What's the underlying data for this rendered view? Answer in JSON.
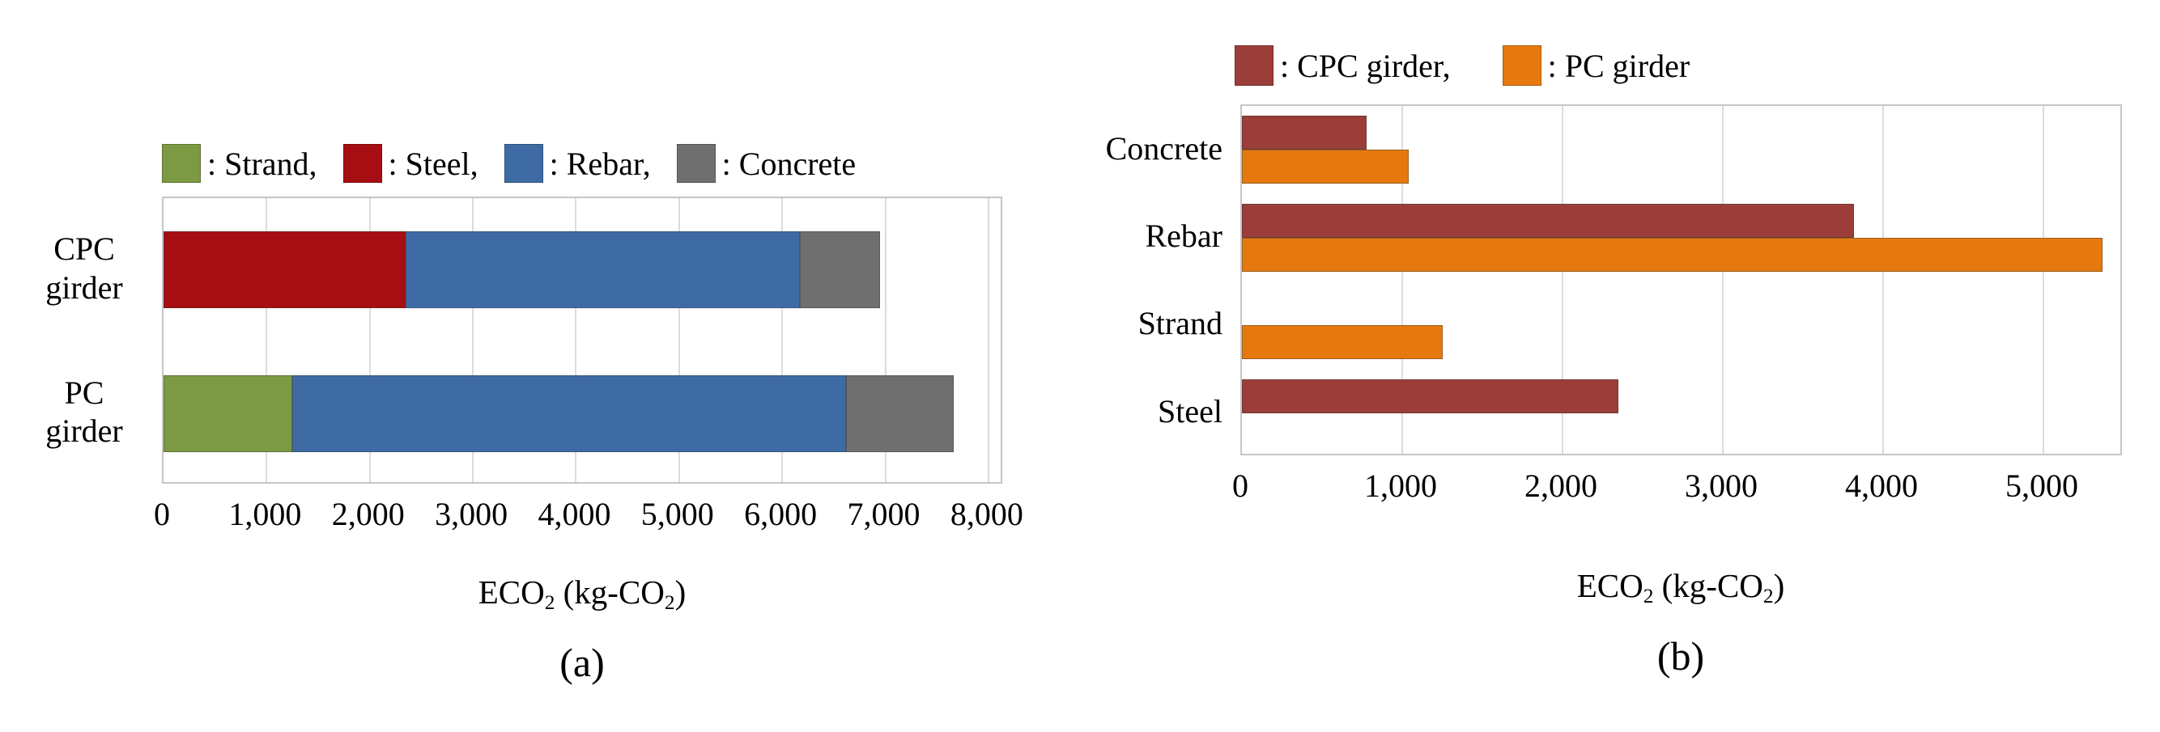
{
  "figure": {
    "description": "Two horizontal bar charts comparing embodied CO2 of CPC girder and PC girder by material"
  },
  "chart_data": [
    {
      "id": "a",
      "type": "bar",
      "orientation": "horizontal",
      "stacked": true,
      "title": "",
      "caption": "(a)",
      "xlabel": "ECO2 (kg-CO2)",
      "xlabel_parts": [
        "ECO",
        "2",
        " (kg-CO",
        "2",
        ")"
      ],
      "ylabel": "",
      "categories": [
        "CPC girder",
        "PC girder"
      ],
      "category_lines": [
        [
          "CPC",
          "girder"
        ],
        [
          "PC",
          "girder"
        ]
      ],
      "series": [
        {
          "name": "Strand",
          "color": "#7b9a43",
          "values": [
            0,
            1250
          ]
        },
        {
          "name": "Steel",
          "color": "#a60e13",
          "values": [
            2350,
            0
          ]
        },
        {
          "name": "Rebar",
          "color": "#3e6ba4",
          "values": [
            3820,
            5370
          ]
        },
        {
          "name": "Concrete",
          "color": "#6f6f6f",
          "values": [
            780,
            1040
          ]
        }
      ],
      "totals": [
        6950,
        7660
      ],
      "legend_labels": [
        ": Strand,",
        ": Steel,",
        ": Rebar,",
        ": Concrete"
      ],
      "legend_position": "top",
      "grid": true,
      "xlim": [
        0,
        8150
      ],
      "xticks": [
        0,
        1000,
        2000,
        3000,
        4000,
        5000,
        6000,
        7000,
        8000
      ],
      "xtick_labels": [
        "0",
        "1,000",
        "2,000",
        "3,000",
        "4,000",
        "5,000",
        "6,000",
        "7,000",
        "8,000"
      ]
    },
    {
      "id": "b",
      "type": "bar",
      "orientation": "horizontal",
      "stacked": false,
      "title": "",
      "caption": "(b)",
      "xlabel": "ECO2 (kg-CO2)",
      "xlabel_parts": [
        "ECO",
        "2",
        " (kg-CO",
        "2",
        ")"
      ],
      "ylabel": "",
      "categories": [
        "Concrete",
        "Rebar",
        "Strand",
        "Steel"
      ],
      "series": [
        {
          "name": "CPC girder",
          "color": "#9b3d38",
          "values": [
            780,
            3820,
            0,
            2350
          ]
        },
        {
          "name": "PC girder",
          "color": "#e6790e",
          "values": [
            1040,
            5370,
            1250,
            0
          ]
        }
      ],
      "legend_labels": [
        ": CPC girder,",
        ": PC girder"
      ],
      "legend_position": "top",
      "grid": true,
      "xlim": [
        0,
        5500
      ],
      "xticks": [
        0,
        1000,
        2000,
        3000,
        4000,
        5000
      ],
      "xtick_labels": [
        "0",
        "1,000",
        "2,000",
        "3,000",
        "4,000",
        "5,000"
      ]
    }
  ],
  "style_hints": {
    "grid_color": "#dcdcdc",
    "plot_border_color": "#c6c6c6",
    "background": "#ffffff",
    "text_color": "#000000"
  }
}
